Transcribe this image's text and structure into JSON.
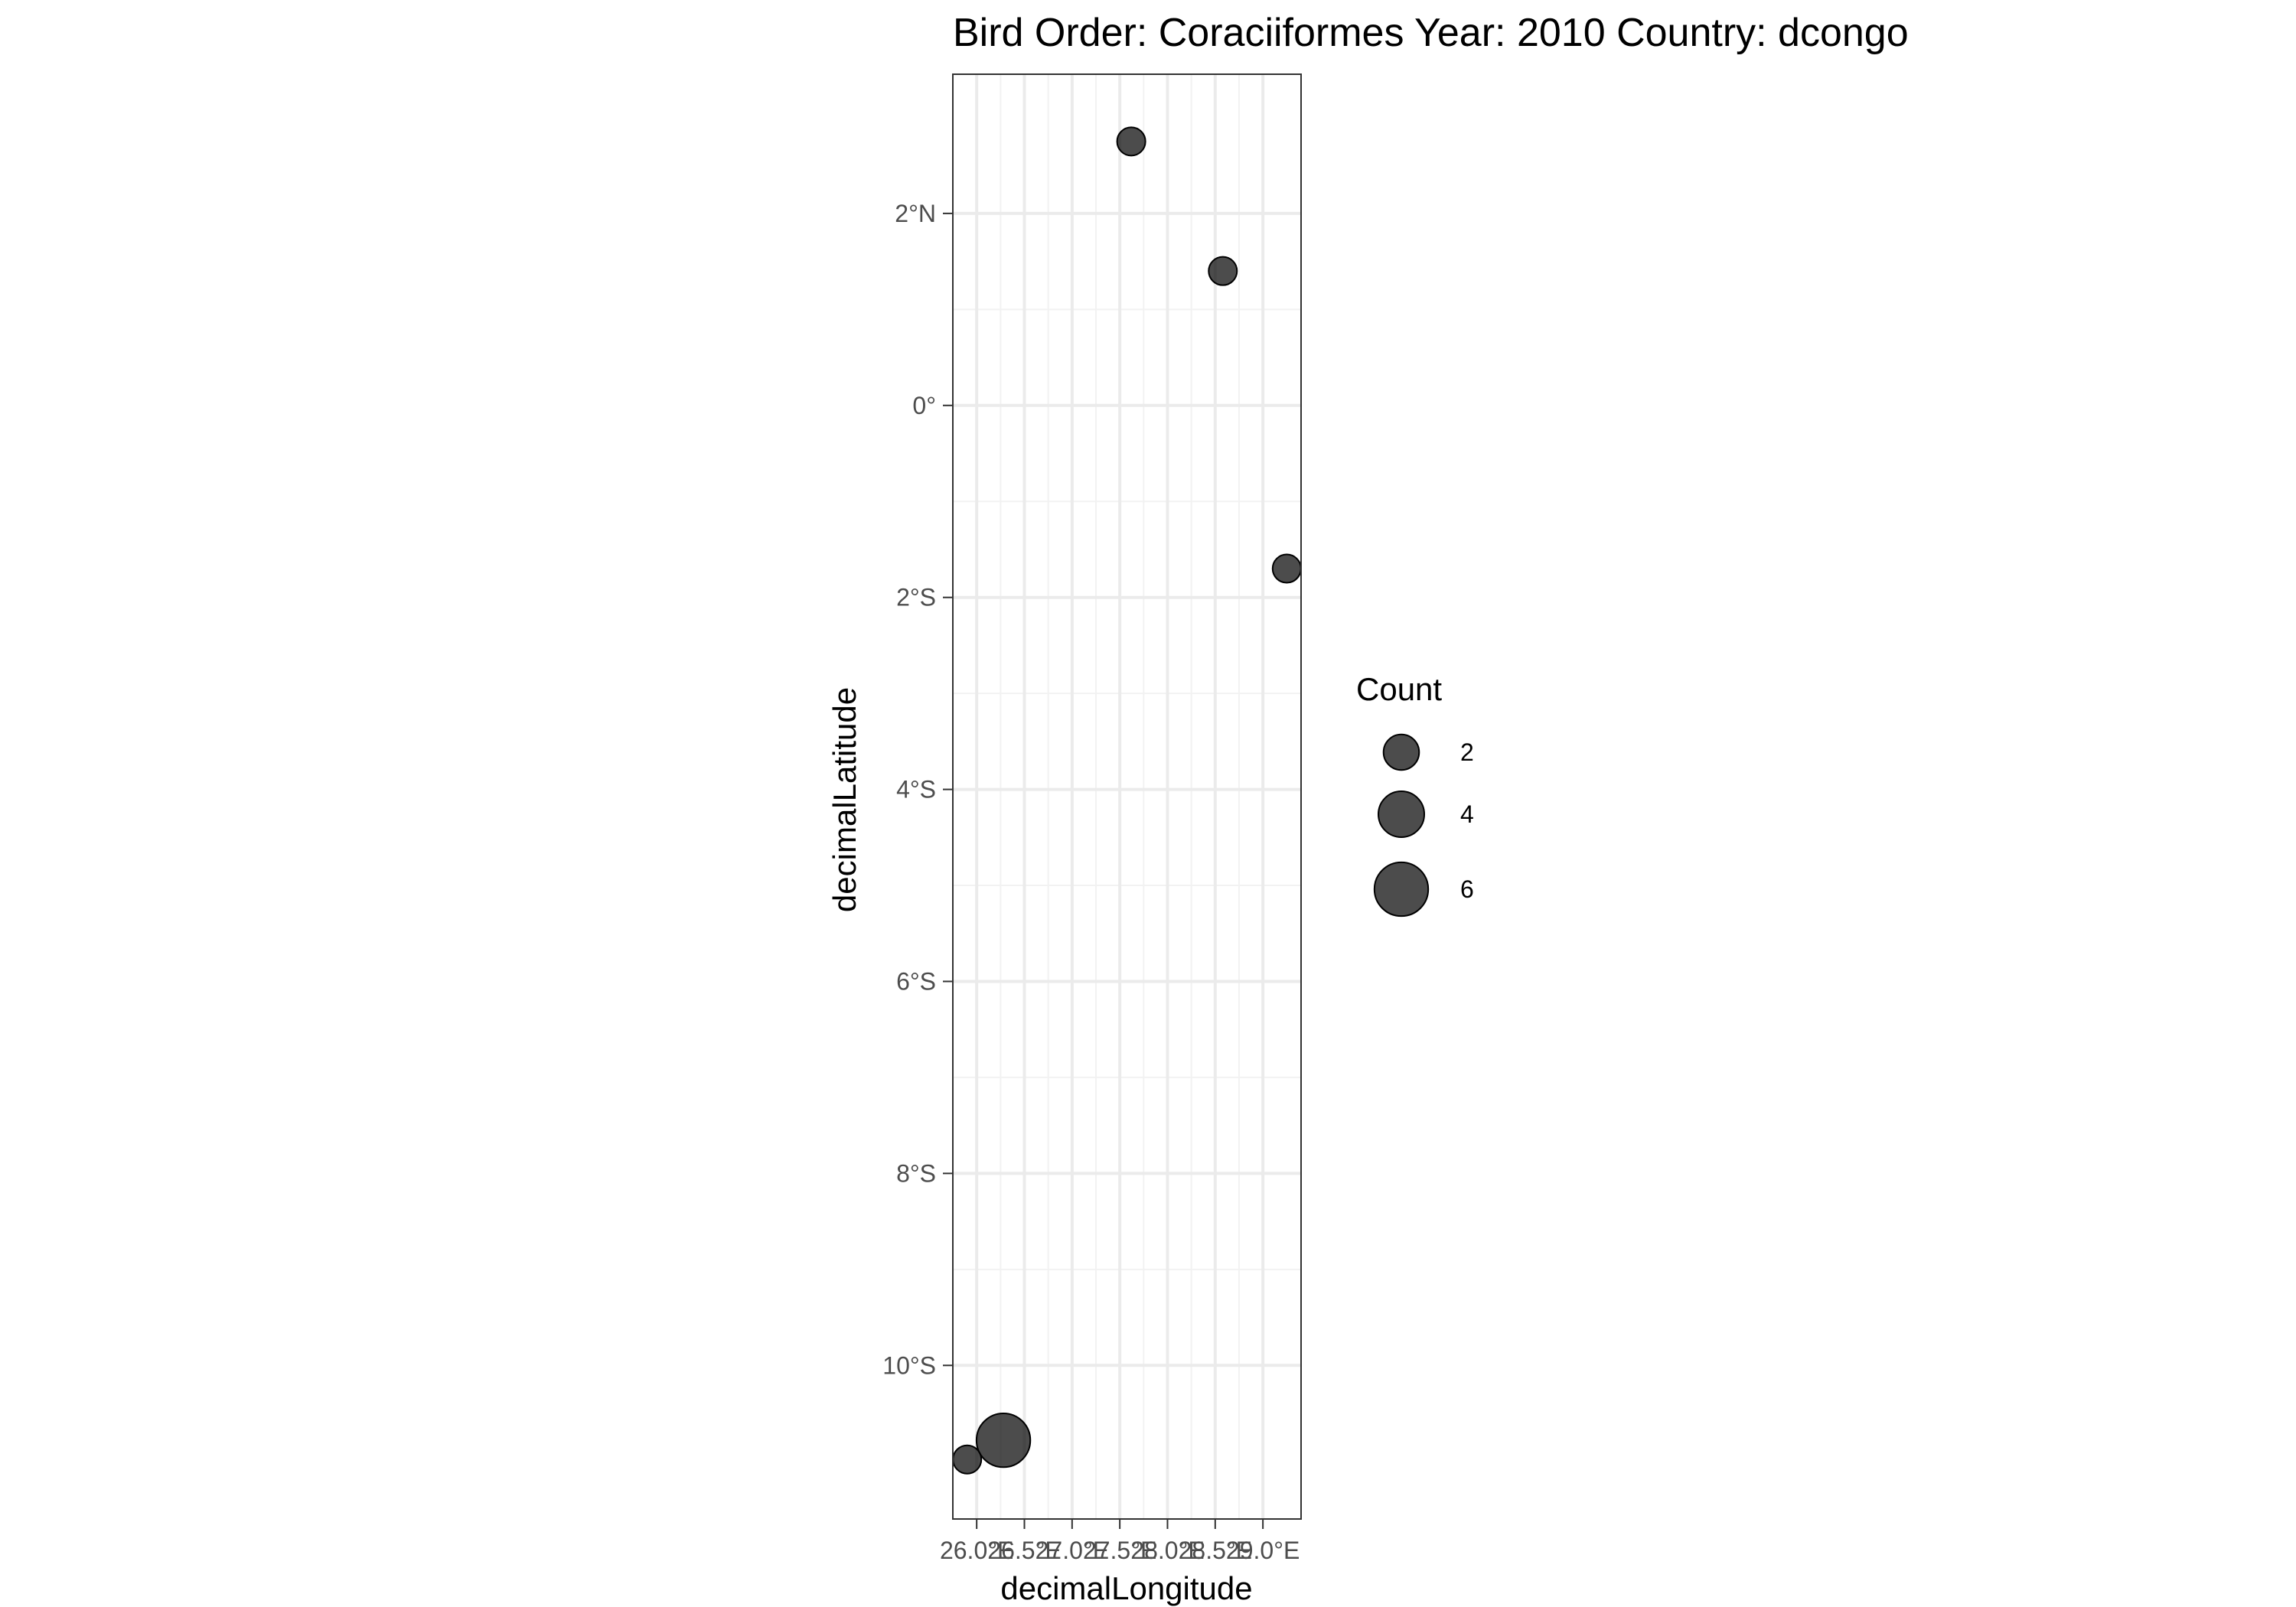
{
  "chart_data": {
    "type": "scatter",
    "title": "Bird Order: Coraciiformes Year: 2010 Country: dcongo",
    "xlabel": "decimalLongitude",
    "ylabel": "decimalLatitude",
    "xlim": [
      25.75,
      29.4
    ],
    "ylim": [
      -11.6,
      3.45
    ],
    "x_ticks": [
      26.0,
      26.5,
      27.0,
      27.5,
      28.0,
      28.5,
      29.0
    ],
    "x_tick_labels": [
      "26.0°E",
      "26.5°E",
      "27.0°E",
      "27.5°E",
      "28.0°E",
      "28.5°E",
      "29.0°E"
    ],
    "y_ticks": [
      2,
      0,
      -2,
      -4,
      -6,
      -8,
      -10
    ],
    "y_tick_labels": [
      "2°N",
      "0°",
      "2°S",
      "4°S",
      "6°S",
      "8°S",
      "10°S"
    ],
    "grid": true,
    "legend": {
      "title": "Count",
      "placement": "right",
      "sizes": [
        2,
        4,
        6
      ],
      "labels": [
        "2",
        "4",
        "6"
      ]
    },
    "marker_color": "#000000",
    "points": [
      {
        "x": 27.62,
        "y": 2.75,
        "count": 1
      },
      {
        "x": 28.58,
        "y": 1.4,
        "count": 1
      },
      {
        "x": 29.25,
        "y": -1.7,
        "count": 1
      },
      {
        "x": 26.28,
        "y": -10.78,
        "count": 6
      },
      {
        "x": 25.9,
        "y": -10.98,
        "count": 1
      }
    ]
  }
}
